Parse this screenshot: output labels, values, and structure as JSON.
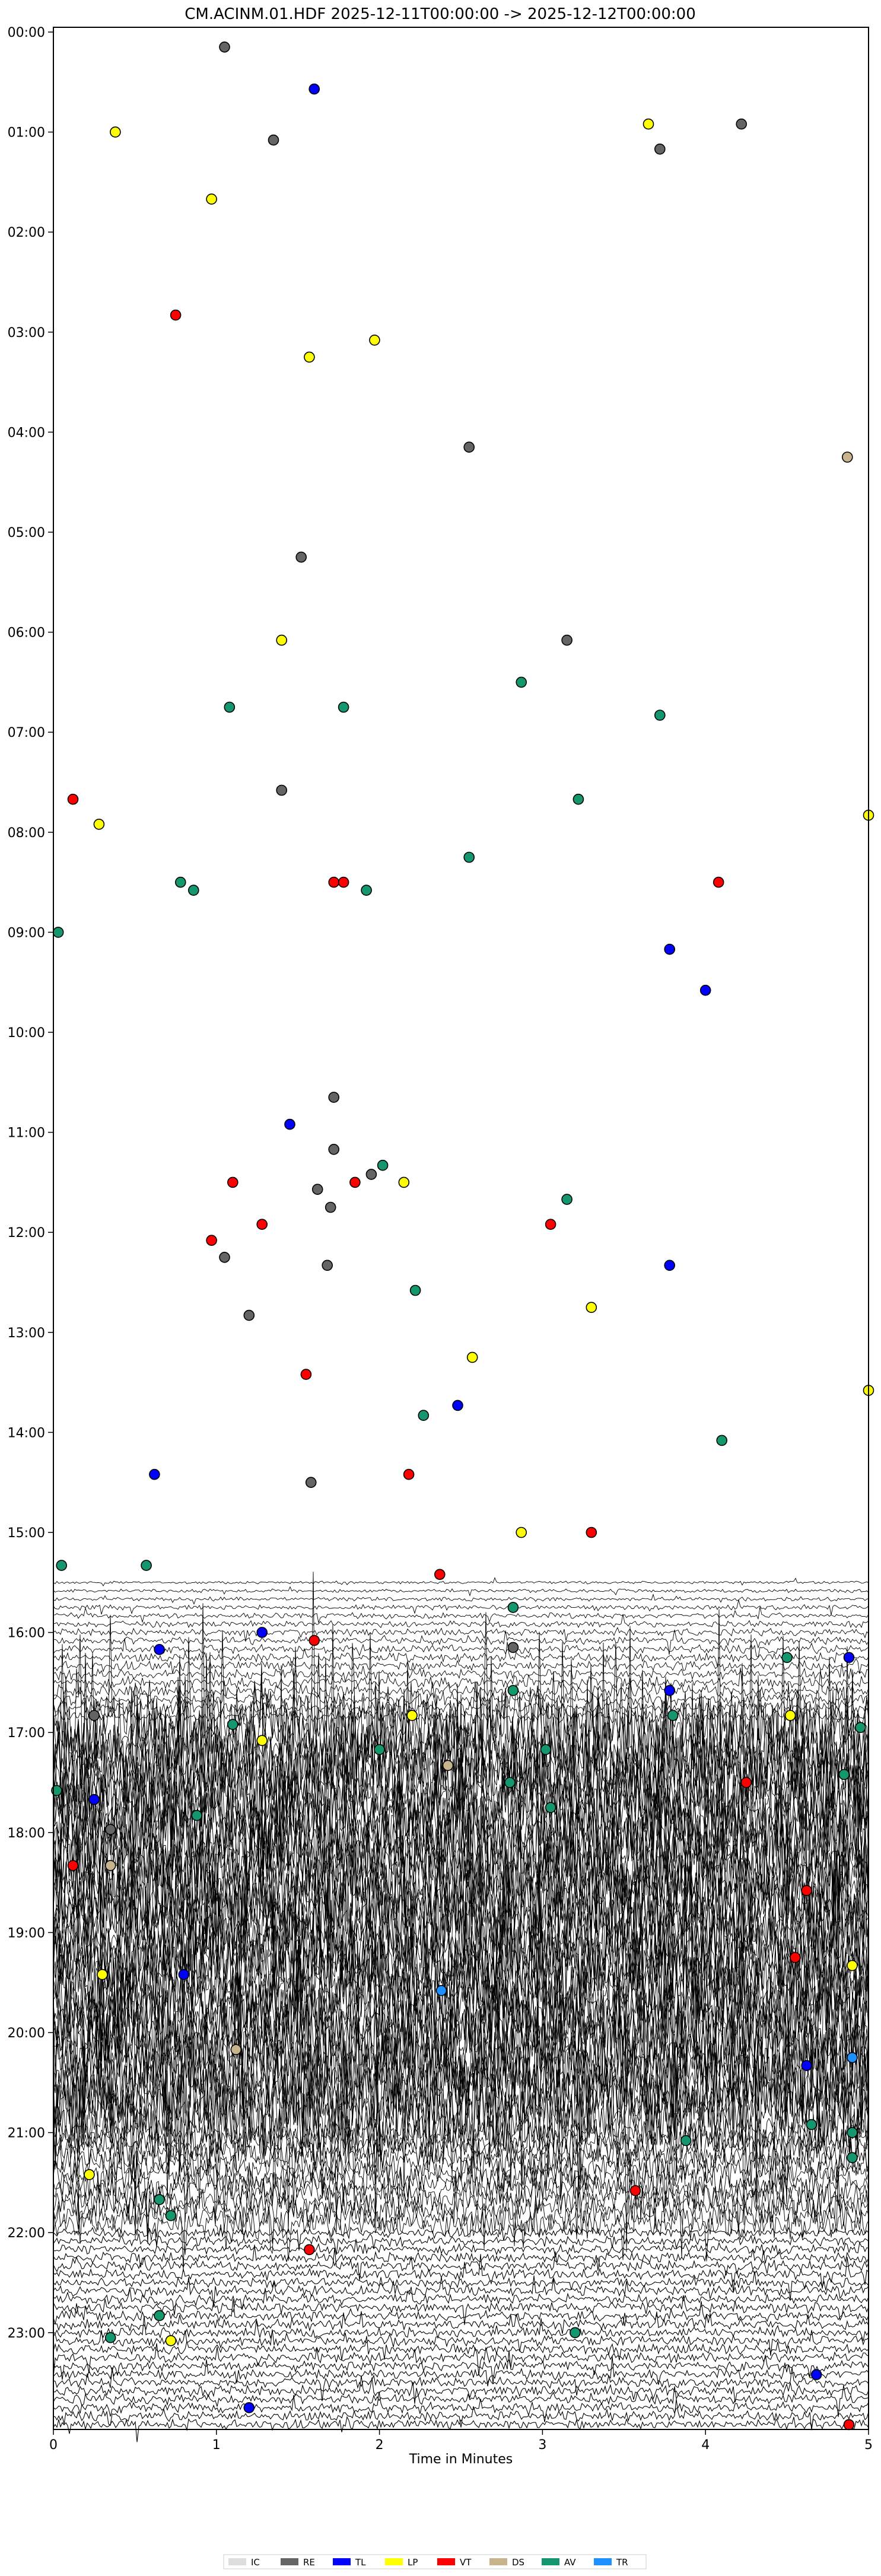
{
  "chart_data": {
    "type": "scatter",
    "title": "CM.ACINM.01.HDF  2025-12-11T00:00:00 -> 2025-12-12T00:00:00",
    "xlabel": "Time in Minutes",
    "ylabel": "",
    "xlim": [
      0,
      5
    ],
    "x_ticks": [
      "0",
      "1",
      "2",
      "3",
      "4",
      "5"
    ],
    "y_ticks": [
      "00:00",
      "01:00",
      "02:00",
      "03:00",
      "04:00",
      "05:00",
      "06:00",
      "07:00",
      "08:00",
      "09:00",
      "10:00",
      "11:00",
      "12:00",
      "13:00",
      "14:00",
      "15:00",
      "16:00",
      "17:00",
      "18:00",
      "19:00",
      "20:00",
      "21:00",
      "22:00",
      "23:00"
    ],
    "y_axis": "hour of day (row = 5-minute window, top to bottom)",
    "legend_position": "bottom-center",
    "legend": [
      {
        "code": "IC",
        "color": "#dddddd"
      },
      {
        "code": "RE",
        "color": "#646464"
      },
      {
        "code": "TL",
        "color": "#0000ff"
      },
      {
        "code": "LP",
        "color": "#ffff00"
      },
      {
        "code": "VT",
        "color": "#ff0000"
      },
      {
        "code": "DS",
        "color": "#c8b48c"
      },
      {
        "code": "AV",
        "color": "#14966e"
      },
      {
        "code": "TR",
        "color": "#1e90ff"
      }
    ],
    "colors": {
      "IC": "#dddddd",
      "RE": "#646464",
      "TL": "#0000ff",
      "LP": "#ffff00",
      "VT": "#ff0000",
      "DS": "#c8b48c",
      "AV": "#14966e",
      "TR": "#1e90ff",
      "unclassified": "#ffffff"
    },
    "series": [
      {
        "code": "IC",
        "points": []
      },
      {
        "code": "RE",
        "points": [
          [
            1.05,
            0.15
          ],
          [
            1.35,
            1.08
          ],
          [
            2.55,
            4.15
          ],
          [
            1.52,
            5.25
          ],
          [
            3.15,
            6.08
          ],
          [
            1.4,
            7.58
          ],
          [
            1.72,
            10.65
          ],
          [
            1.72,
            11.17
          ],
          [
            1.62,
            11.57
          ],
          [
            1.95,
            11.42
          ],
          [
            1.7,
            11.75
          ],
          [
            1.05,
            12.25
          ],
          [
            1.2,
            12.83
          ],
          [
            1.68,
            12.33
          ],
          [
            1.58,
            14.5
          ],
          [
            2.82,
            16.15
          ],
          [
            0.25,
            16.83
          ],
          [
            4.22,
            0.92
          ],
          [
            3.72,
            1.17
          ],
          [
            0.35,
            17.97
          ]
        ]
      },
      {
        "code": "TL",
        "points": [
          [
            1.6,
            0.57
          ],
          [
            3.78,
            9.17
          ],
          [
            4.0,
            9.58
          ],
          [
            1.45,
            10.92
          ],
          [
            3.78,
            12.33
          ],
          [
            2.48,
            13.73
          ],
          [
            0.62,
            14.42
          ],
          [
            1.28,
            16.0
          ],
          [
            0.65,
            16.17
          ],
          [
            3.78,
            16.58
          ],
          [
            4.88,
            16.25
          ],
          [
            0.25,
            17.67
          ],
          [
            4.62,
            20.33
          ],
          [
            1.2,
            23.75
          ],
          [
            4.68,
            23.42
          ],
          [
            0.8,
            19.42
          ]
        ]
      },
      {
        "code": "LP",
        "points": [
          [
            0.38,
            1.0
          ],
          [
            3.65,
            0.92
          ],
          [
            0.97,
            1.67
          ],
          [
            1.97,
            3.08
          ],
          [
            1.57,
            3.25
          ],
          [
            1.4,
            6.08
          ],
          [
            0.28,
            7.92
          ],
          [
            5.0,
            7.83
          ],
          [
            2.15,
            11.5
          ],
          [
            3.3,
            12.75
          ],
          [
            2.57,
            13.25
          ],
          [
            5.0,
            13.58
          ],
          [
            2.87,
            15.0
          ],
          [
            1.28,
            17.08
          ],
          [
            2.2,
            16.83
          ],
          [
            4.52,
            16.83
          ],
          [
            0.3,
            19.42
          ],
          [
            4.9,
            19.33
          ],
          [
            0.22,
            21.42
          ],
          [
            0.72,
            23.08
          ]
        ]
      },
      {
        "code": "VT",
        "points": [
          [
            0.75,
            2.83
          ],
          [
            0.12,
            7.67
          ],
          [
            1.72,
            8.5
          ],
          [
            1.78,
            8.5
          ],
          [
            4.08,
            8.5
          ],
          [
            1.1,
            11.5
          ],
          [
            1.85,
            11.5
          ],
          [
            0.97,
            12.08
          ],
          [
            1.28,
            11.92
          ],
          [
            3.05,
            11.92
          ],
          [
            1.55,
            13.42
          ],
          [
            2.18,
            14.42
          ],
          [
            3.3,
            15.0
          ],
          [
            2.37,
            15.42
          ],
          [
            1.6,
            16.08
          ],
          [
            0.12,
            18.33
          ],
          [
            4.25,
            17.5
          ],
          [
            4.62,
            18.58
          ],
          [
            4.55,
            19.25
          ],
          [
            3.57,
            21.58
          ],
          [
            1.57,
            22.17
          ],
          [
            4.88,
            23.92
          ]
        ]
      },
      {
        "code": "DS",
        "points": [
          [
            4.87,
            4.25
          ],
          [
            0.35,
            18.33
          ],
          [
            2.42,
            17.33
          ],
          [
            1.12,
            20.17
          ]
        ]
      },
      {
        "code": "AV",
        "points": [
          [
            0.03,
            9.0
          ],
          [
            1.08,
            6.75
          ],
          [
            1.78,
            6.75
          ],
          [
            2.87,
            6.5
          ],
          [
            3.72,
            6.83
          ],
          [
            3.22,
            7.67
          ],
          [
            2.55,
            8.25
          ],
          [
            0.78,
            8.5
          ],
          [
            0.86,
            8.58
          ],
          [
            1.92,
            8.58
          ],
          [
            2.02,
            11.33
          ],
          [
            3.15,
            11.67
          ],
          [
            2.22,
            12.58
          ],
          [
            2.27,
            13.83
          ],
          [
            4.1,
            14.08
          ],
          [
            0.05,
            15.33
          ],
          [
            0.57,
            15.33
          ],
          [
            2.82,
            15.75
          ],
          [
            4.5,
            16.25
          ],
          [
            2.82,
            16.58
          ],
          [
            3.8,
            16.83
          ],
          [
            0.02,
            17.58
          ],
          [
            1.1,
            16.92
          ],
          [
            4.95,
            16.95
          ],
          [
            2.0,
            17.17
          ],
          [
            2.8,
            17.5
          ],
          [
            0.88,
            17.83
          ],
          [
            4.85,
            17.42
          ],
          [
            3.88,
            21.08
          ],
          [
            4.65,
            20.92
          ],
          [
            0.65,
            21.67
          ],
          [
            0.72,
            21.83
          ],
          [
            3.2,
            23.0
          ],
          [
            0.35,
            23.05
          ],
          [
            0.65,
            22.83
          ],
          [
            4.9,
            21.25
          ],
          [
            4.9,
            21.0
          ],
          [
            3.05,
            17.75
          ],
          [
            3.02,
            17.17
          ]
        ]
      },
      {
        "code": "TR",
        "points": [
          [
            2.38,
            19.58
          ],
          [
            4.9,
            20.25
          ]
        ]
      }
    ]
  }
}
